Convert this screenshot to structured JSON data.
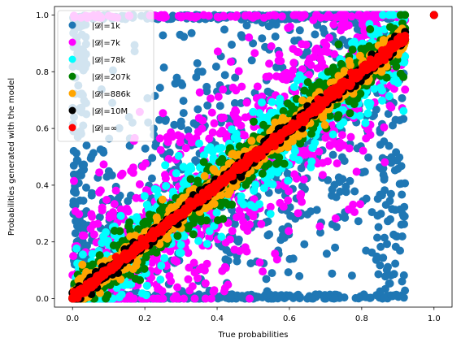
{
  "chart_data": {
    "type": "scatter",
    "xlabel": "True probabilities",
    "ylabel": "Probabilities generated with the model",
    "xlim": [
      -0.05,
      1.05
    ],
    "ylim": [
      -0.03,
      1.03
    ],
    "x_ticks": [
      "0.0",
      "0.2",
      "0.4",
      "0.6",
      "0.8",
      "1.0"
    ],
    "y_ticks": [
      "0.0",
      "0.2",
      "0.4",
      "0.6",
      "0.8",
      "1.0"
    ],
    "grid": false,
    "legend_position": "upper-left",
    "series": [
      {
        "name": "|𝓓|=1k",
        "color": "#1f77b4",
        "spread": 0.3
      },
      {
        "name": "|𝓓|=7k",
        "color": "#ff00ff",
        "spread": 0.18
      },
      {
        "name": "|𝓓|=78k",
        "color": "#00ffff",
        "spread": 0.075
      },
      {
        "name": "|𝓓|=207k",
        "color": "#008000",
        "spread": 0.045
      },
      {
        "name": "|𝓓|=886k",
        "color": "#ffa500",
        "spread": 0.028
      },
      {
        "name": "|𝓓|=10M",
        "color": "#000000",
        "spread": 0.012
      },
      {
        "name": "|𝓓|=∞",
        "color": "#ff0000",
        "spread": 0.008
      }
    ],
    "x_range_main": [
      0.0,
      0.92
    ],
    "outlier_point": {
      "x": 1.0,
      "y": 1.0
    }
  }
}
